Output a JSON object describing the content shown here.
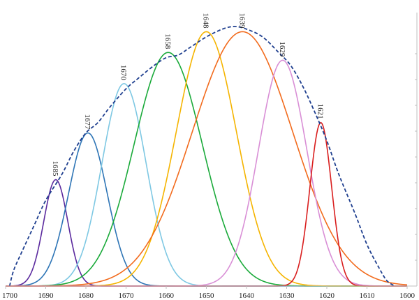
{
  "chart_data": {
    "type": "line",
    "title": "",
    "xlabel": "",
    "ylabel": "",
    "x_reversed": true,
    "xlim": [
      1700,
      1600
    ],
    "ylim": [
      0,
      1
    ],
    "x_ticks": [
      "1700",
      "1690",
      "1680",
      "1670",
      "1660",
      "1650",
      "1640",
      "1630",
      "1620",
      "1610",
      "1600"
    ],
    "grid": false,
    "legend": "none",
    "envelope": {
      "style": "dashed",
      "color": "#1f3f8f",
      "points": [
        [
          1699,
          0.0
        ],
        [
          1698,
          0.06
        ],
        [
          1696,
          0.13
        ],
        [
          1693,
          0.23
        ],
        [
          1690,
          0.33
        ],
        [
          1686,
          0.43
        ],
        [
          1683,
          0.52
        ],
        [
          1680,
          0.59
        ],
        [
          1677,
          0.63
        ],
        [
          1674,
          0.69
        ],
        [
          1670,
          0.76
        ],
        [
          1667,
          0.8
        ],
        [
          1663,
          0.85
        ],
        [
          1660,
          0.88
        ],
        [
          1657,
          0.89
        ],
        [
          1654,
          0.92
        ],
        [
          1650,
          0.96
        ],
        [
          1646,
          0.99
        ],
        [
          1643,
          1.0
        ],
        [
          1640,
          0.99
        ],
        [
          1636,
          0.96
        ],
        [
          1632,
          0.9
        ],
        [
          1629,
          0.85
        ],
        [
          1626,
          0.77
        ],
        [
          1623,
          0.67
        ],
        [
          1620,
          0.56
        ],
        [
          1617,
          0.43
        ],
        [
          1613,
          0.28
        ],
        [
          1610,
          0.16
        ],
        [
          1607,
          0.07
        ],
        [
          1605,
          0.02
        ],
        [
          1603,
          0.0
        ]
      ]
    },
    "series": [
      {
        "label": "1685",
        "center": 1687.5,
        "height": 0.41,
        "sigma": 3.0,
        "color": "#5b2a9e"
      },
      {
        "label": "1677",
        "center": 1679.5,
        "height": 0.59,
        "sigma": 4.8,
        "color": "#2e75b6"
      },
      {
        "label": "1670",
        "center": 1670.5,
        "height": 0.78,
        "sigma": 5.5,
        "color": "#7ec8e3"
      },
      {
        "label": "1658",
        "center": 1659.5,
        "height": 0.9,
        "sigma": 8.5,
        "color": "#1aaa3a"
      },
      {
        "label": "1648",
        "center": 1650.0,
        "height": 0.98,
        "sigma": 7.5,
        "color": "#f5b400"
      },
      {
        "label": "1639",
        "center": 1641.0,
        "height": 0.98,
        "sigma": 12.5,
        "color": "#f26b1d"
      },
      {
        "label": "1629",
        "center": 1631.0,
        "height": 0.87,
        "sigma": 6.0,
        "color": "#d98fd6"
      },
      {
        "label": "1621",
        "center": 1621.5,
        "height": 0.63,
        "sigma": 2.7,
        "color": "#d91e1e"
      }
    ]
  }
}
